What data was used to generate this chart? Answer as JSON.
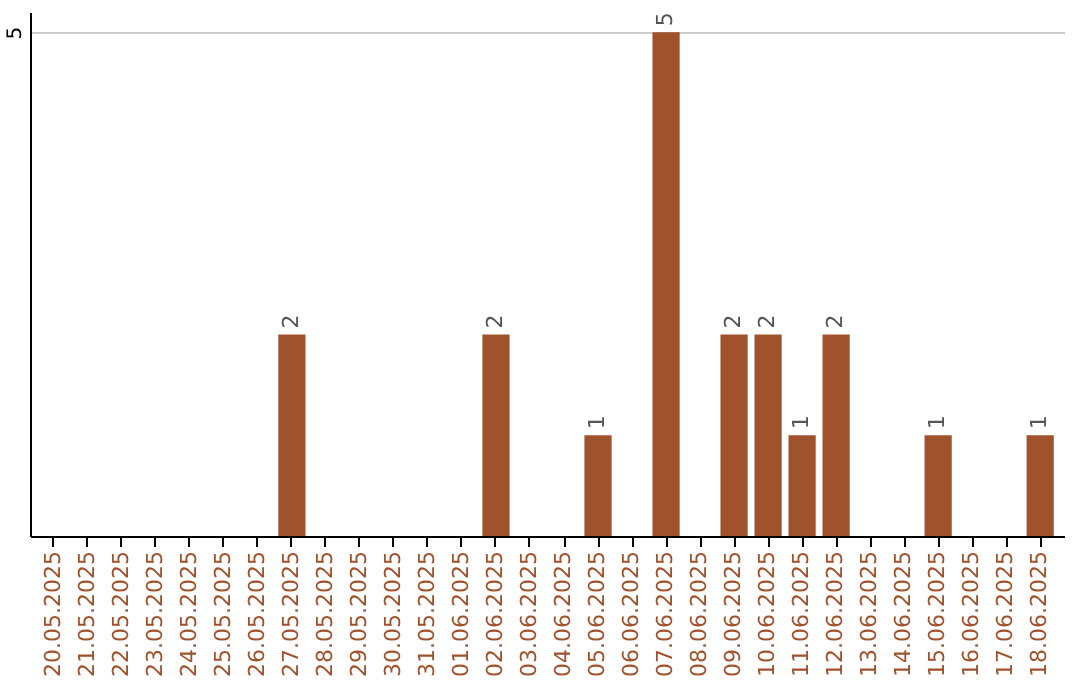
{
  "chart_data": {
    "type": "bar",
    "categories": [
      "20.05.2025",
      "21.05.2025",
      "22.05.2025",
      "23.05.2025",
      "24.05.2025",
      "25.05.2025",
      "26.05.2025",
      "27.05.2025",
      "28.05.2025",
      "29.05.2025",
      "30.05.2025",
      "31.05.2025",
      "01.06.2025",
      "02.06.2025",
      "03.06.2025",
      "04.06.2025",
      "05.06.2025",
      "06.06.2025",
      "07.06.2025",
      "08.06.2025",
      "09.06.2025",
      "10.06.2025",
      "11.06.2025",
      "12.06.2025",
      "13.06.2025",
      "14.06.2025",
      "15.06.2025",
      "16.06.2025",
      "17.06.2025",
      "18.06.2025"
    ],
    "values": [
      null,
      null,
      null,
      null,
      null,
      null,
      null,
      2,
      null,
      null,
      null,
      null,
      null,
      2,
      null,
      null,
      1,
      null,
      5,
      null,
      2,
      2,
      1,
      2,
      null,
      null,
      1,
      null,
      null,
      1
    ],
    "color": "#a0522d",
    "ylim": [
      0,
      5.2
    ],
    "yticks": [
      5
    ],
    "grid": "y",
    "data_labels": true
  }
}
